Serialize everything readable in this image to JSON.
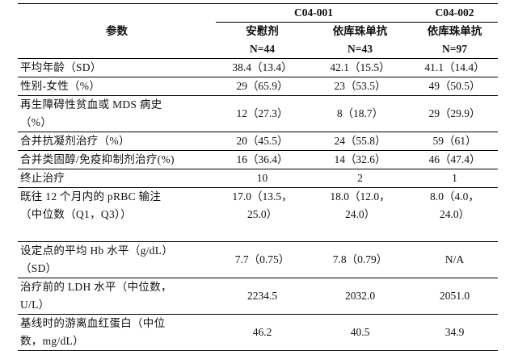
{
  "header": {
    "param_label": "参数",
    "study1": "C04-001",
    "study2": "C04-002",
    "arms": [
      {
        "name": "安慰剂",
        "n": "N=44"
      },
      {
        "name": "依库珠单抗",
        "n": "N=43"
      },
      {
        "name": "依库珠单抗",
        "n": "N=97"
      }
    ]
  },
  "rows": [
    {
      "label": [
        "平均年龄（SD）"
      ],
      "values": [
        [
          "38.4（13.4）"
        ],
        [
          "42.1（15.5）"
        ],
        [
          "41.1（14.4）"
        ]
      ]
    },
    {
      "label": [
        "性别-女性（%）"
      ],
      "values": [
        [
          "29（65.9）"
        ],
        [
          "23（53.5）"
        ],
        [
          "49（50.5）"
        ]
      ]
    },
    {
      "label": [
        "再生障碍性贫血或 MDS 病史",
        "（%）"
      ],
      "values": [
        [
          "12（27.3）"
        ],
        [
          "8（18.7）"
        ],
        [
          "29（29.9）"
        ]
      ]
    },
    {
      "label": [
        "合并抗凝剂治疗（%）"
      ],
      "values": [
        [
          "20（45.5）"
        ],
        [
          "24（55.8）"
        ],
        [
          "59（61）"
        ]
      ]
    },
    {
      "label": [
        "合并类固醇/免疫抑制剂治疗(%)"
      ],
      "values": [
        [
          "16（36.4）"
        ],
        [
          "14（32.6）"
        ],
        [
          "46（47.4）"
        ]
      ]
    },
    {
      "label": [
        "终止治疗"
      ],
      "values": [
        [
          "10"
        ],
        [
          "2"
        ],
        [
          "1"
        ]
      ]
    },
    {
      "label": [
        "既往 12 个月内的 pRBC 输注",
        "（中位数（Q1，Q3））",
        ""
      ],
      "values": [
        [
          "17.0（13.5，",
          "25.0）"
        ],
        [
          "18.0（12.0，",
          "24.0）"
        ],
        [
          "8.0（4.0，",
          "24.0）"
        ]
      ]
    },
    {
      "label": [
        "设定点的平均 Hb 水平（g/dL）",
        "（SD）"
      ],
      "values": [
        [
          "7.7（0.75）"
        ],
        [
          "7.8（0.79）"
        ],
        [
          "N/A"
        ]
      ]
    },
    {
      "label": [
        "治疗前的 LDH 水平（中位数，",
        "U/L）"
      ],
      "values": [
        [
          "2234.5"
        ],
        [
          "2032.0"
        ],
        [
          "2051.0"
        ]
      ]
    },
    {
      "label": [
        "基线时的游离血红蛋白（中位",
        "数，mg/dL）"
      ],
      "values": [
        [
          "46.2"
        ],
        [
          "40.5"
        ],
        [
          "34.9"
        ]
      ]
    }
  ]
}
